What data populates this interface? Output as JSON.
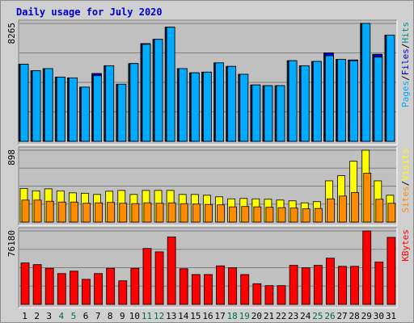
{
  "title": "Daily usage for July 2020",
  "colors": {
    "pages": "#00aaff",
    "files": "#0000cc",
    "hits": "#009088",
    "visits": "#ffff00",
    "sites": "#ff8c00",
    "kbytes": "#ff0000",
    "weekend": "#007040",
    "weekday": "#000000",
    "title": "#0000cc"
  },
  "chart_data": {
    "type": "bar",
    "title": "Daily usage for July 2020",
    "categories": [
      "1",
      "2",
      "3",
      "4",
      "5",
      "6",
      "7",
      "8",
      "9",
      "10",
      "11",
      "12",
      "13",
      "14",
      "15",
      "16",
      "17",
      "18",
      "19",
      "20",
      "21",
      "22",
      "23",
      "24",
      "25",
      "26",
      "27",
      "28",
      "29",
      "30",
      "31"
    ],
    "weekend_days": [
      "4",
      "5",
      "11",
      "12",
      "18",
      "19",
      "25",
      "26"
    ],
    "panels": [
      {
        "name": "pages-files-hits",
        "ymax_label": "8265",
        "ylim": [
          0,
          8265
        ],
        "label_words": [
          "Pages",
          "Files",
          "Hits"
        ],
        "series": [
          {
            "name": "Hits",
            "values": [
              5400,
              4950,
              5100,
              4500,
              4450,
              3800,
              4750,
              5300,
              4000,
              5450,
              6850,
              7150,
              8000,
              5100,
              4800,
              4850,
              5500,
              5250,
              4700,
              3950,
              3900,
              3900,
              5650,
              5300,
              5600,
              6200,
              5750,
              5700,
              8265,
              6100,
              7450
            ]
          },
          {
            "name": "Files",
            "values": [
              5400,
              4950,
              5100,
              4500,
              4450,
              3800,
              4750,
              5300,
              4000,
              5450,
              6850,
              7150,
              8000,
              5100,
              4800,
              4850,
              5500,
              5250,
              4700,
              3950,
              3900,
              3900,
              5650,
              5300,
              5600,
              6200,
              5750,
              5700,
              8265,
              6100,
              7450
            ]
          },
          {
            "name": "Pages",
            "values": [
              5400,
              4950,
              5100,
              4500,
              4450,
              3800,
              4600,
              5300,
              4000,
              5450,
              6800,
              7150,
              8000,
              5100,
              4800,
              4850,
              5500,
              5250,
              4700,
              3950,
              3900,
              3900,
              5650,
              5300,
              5600,
              6000,
              5750,
              5650,
              8265,
              5900,
              7450
            ]
          }
        ]
      },
      {
        "name": "visits-sites",
        "ymax_label": "898",
        "ylim": [
          0,
          898
        ],
        "label_words": [
          "Sites",
          "Visits"
        ],
        "series": [
          {
            "name": "Visits",
            "values": [
              420,
              390,
              415,
              390,
              365,
              360,
              345,
              385,
              395,
              345,
              395,
              395,
              395,
              345,
              345,
              335,
              315,
              290,
              295,
              290,
              285,
              275,
              265,
              240,
              255,
              515,
              580,
              760,
              898,
              515,
              335
            ]
          },
          {
            "name": "Sites",
            "values": [
              275,
              275,
              260,
              250,
              250,
              235,
              240,
              245,
              235,
              230,
              240,
              235,
              240,
              230,
              225,
              220,
              215,
              190,
              195,
              190,
              185,
              180,
              175,
              165,
              170,
              290,
              325,
              370,
              610,
              285,
              235
            ]
          }
        ]
      },
      {
        "name": "kbytes",
        "ymax_label": "76180",
        "ylim": [
          0,
          76180
        ],
        "label_words": [
          "KBytes"
        ],
        "series": [
          {
            "name": "KBytes",
            "values": [
              43000,
              41300,
              37500,
              32000,
              34500,
              26000,
              32000,
              37500,
              24500,
              37500,
              58000,
              54500,
              70000,
              37000,
              31000,
              31000,
              40000,
              38000,
              31000,
              21500,
              19500,
              19500,
              40500,
              38000,
              40500,
              48000,
              39500,
              39500,
              76180,
              44000,
              69500
            ]
          }
        ]
      }
    ]
  }
}
